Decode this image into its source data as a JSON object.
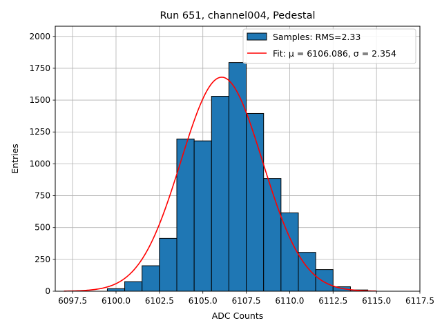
{
  "chart_data": {
    "type": "bar",
    "title": "Run 651, channel004, Pedestal",
    "xlabel": "ADC Counts",
    "ylabel": "Entries",
    "xlim": [
      6096.5,
      6117.5
    ],
    "ylim": [
      0,
      2080
    ],
    "x_ticks": [
      6097.5,
      6100.0,
      6102.5,
      6105.0,
      6107.5,
      6110.0,
      6112.5,
      6115.0,
      6117.5
    ],
    "x_tick_labels": [
      "6097.5",
      "6100.0",
      "6102.5",
      "6105.0",
      "6107.5",
      "6110.0",
      "6112.5",
      "6115.0",
      "6117.5"
    ],
    "y_ticks": [
      0,
      250,
      500,
      750,
      1000,
      1250,
      1500,
      1750,
      2000
    ],
    "y_tick_labels": [
      "0",
      "250",
      "500",
      "750",
      "1000",
      "1250",
      "1500",
      "1750",
      "2000"
    ],
    "grid": true,
    "legend_position": "top-right",
    "series": [
      {
        "name": "Samples: RMS=2.33",
        "kind": "histogram",
        "color": "#1f77b4",
        "edge_color": "#000000",
        "bins": [
          [
            6099.5,
            6100.5,
            20
          ],
          [
            6100.5,
            6101.5,
            75
          ],
          [
            6101.5,
            6102.5,
            200
          ],
          [
            6102.5,
            6103.5,
            415
          ],
          [
            6103.5,
            6104.5,
            1195
          ],
          [
            6104.5,
            6105.5,
            1180
          ],
          [
            6105.5,
            6106.5,
            1530
          ],
          [
            6106.5,
            6107.5,
            1795
          ],
          [
            6107.5,
            6108.5,
            1395
          ],
          [
            6108.5,
            6109.5,
            885
          ],
          [
            6109.5,
            6110.5,
            615
          ],
          [
            6110.5,
            6111.5,
            305
          ],
          [
            6111.5,
            6112.5,
            170
          ],
          [
            6112.5,
            6113.5,
            35
          ],
          [
            6113.5,
            6114.5,
            10
          ]
        ]
      },
      {
        "name": "Fit: μ = 6106.086, σ = 2.354",
        "kind": "gaussian",
        "color": "#ff0000",
        "mu": 6106.086,
        "sigma": 2.354,
        "amplitude": 1680,
        "x_range": [
          6097,
          6115
        ]
      }
    ]
  }
}
